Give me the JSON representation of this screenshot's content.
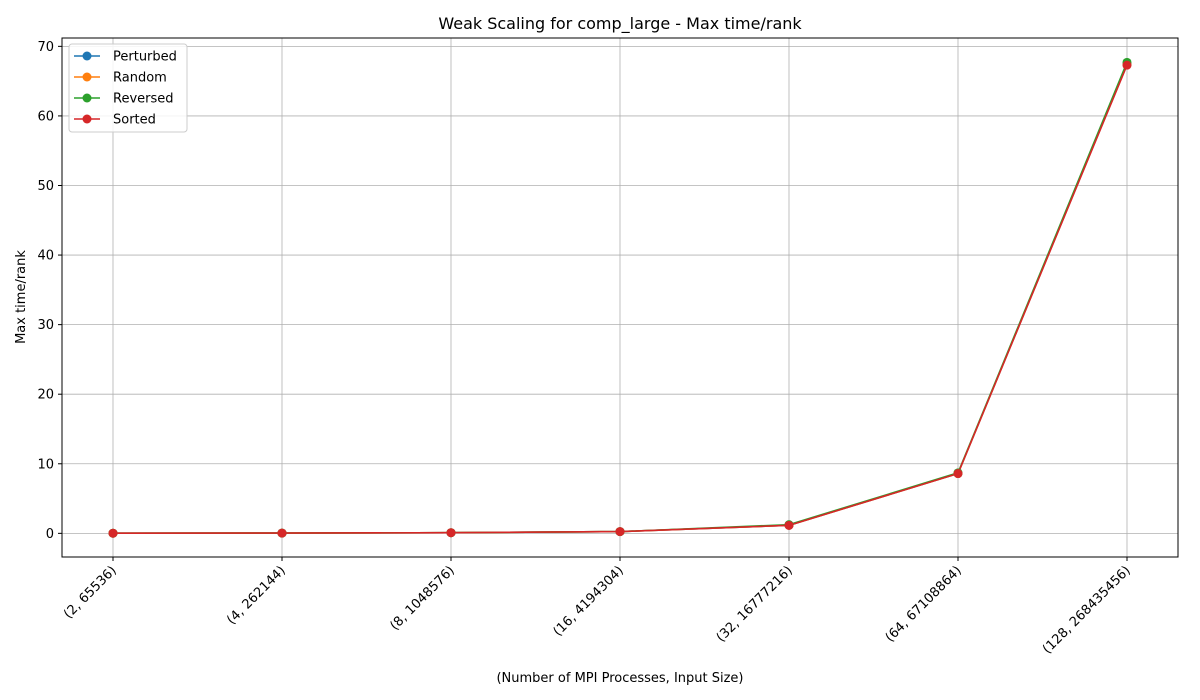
{
  "chart_data": {
    "type": "line",
    "title": "Weak Scaling for comp_large - Max time/rank",
    "xlabel": "(Number of MPI Processes, Input Size)",
    "ylabel": "Max time/rank",
    "categories": [
      "(2, 65536)",
      "(4, 262144)",
      "(8, 1048576)",
      "(16, 4194304)",
      "(32, 16777216)",
      "(64, 67108864)",
      "(128, 268435456)"
    ],
    "ylim": [
      -3.4,
      71.2
    ],
    "yticks": [
      0,
      10,
      20,
      30,
      40,
      50,
      60,
      70
    ],
    "grid": true,
    "legend_position": "top-left",
    "series": [
      {
        "name": "Perturbed",
        "color": "#1f77b4",
        "values": [
          0.02,
          0.04,
          0.09,
          0.25,
          1.15,
          8.6,
          67.4
        ]
      },
      {
        "name": "Random",
        "color": "#ff7f0e",
        "values": [
          0.02,
          0.04,
          0.09,
          0.25,
          1.15,
          8.6,
          67.4
        ]
      },
      {
        "name": "Reversed",
        "color": "#2ca02c",
        "values": [
          0.02,
          0.04,
          0.09,
          0.25,
          1.25,
          8.7,
          67.7
        ]
      },
      {
        "name": "Sorted",
        "color": "#d62728",
        "values": [
          0.02,
          0.04,
          0.09,
          0.25,
          1.15,
          8.6,
          67.3
        ]
      }
    ]
  }
}
